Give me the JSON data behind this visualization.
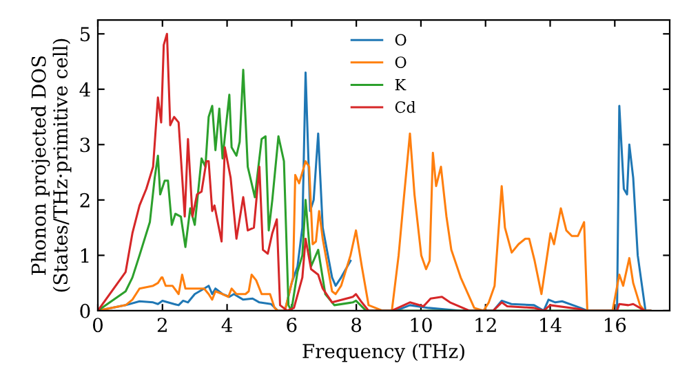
{
  "chart_data": {
    "type": "line",
    "xlabel": "Frequency (THz)",
    "ylabel": "Phonon projected DOS\n(States/THz·primitive cell)",
    "xlim": [
      0,
      17.7
    ],
    "ylim": [
      0,
      5.25
    ],
    "xticks": [
      0,
      2,
      4,
      6,
      8,
      10,
      12,
      14,
      16
    ],
    "yticks": [
      0,
      1,
      2,
      3,
      4,
      5
    ],
    "grid": false,
    "legend": "top",
    "line_style": "solid",
    "marker": "none",
    "series": [
      {
        "name": "O",
        "color": "#1f77b4",
        "x": [
          0,
          0.86,
          1.29,
          1.71,
          1.86,
          2.0,
          2.36,
          2.5,
          2.64,
          2.79,
          3.0,
          3.29,
          3.43,
          3.54,
          3.64,
          3.86,
          4.07,
          4.21,
          4.5,
          4.79,
          5.0,
          5.36,
          5.57,
          5.79,
          6.0,
          6.18,
          6.33,
          6.43,
          6.57,
          6.68,
          6.82,
          6.96,
          7.25,
          7.36,
          7.53,
          7.82,
          7.99,
          8.17,
          8.38,
          9.23,
          9.66,
          10.24,
          11.23,
          12.24,
          12.5,
          12.8,
          13.5,
          13.8,
          13.95,
          14.16,
          14.37,
          14.94,
          15.15,
          16.07,
          16.14,
          16.28,
          16.38,
          16.45,
          16.57,
          16.71,
          16.95,
          17.1
        ],
        "values": [
          0,
          0.1,
          0.17,
          0.15,
          0.12,
          0.18,
          0.12,
          0.1,
          0.18,
          0.15,
          0.3,
          0.4,
          0.45,
          0.3,
          0.4,
          0.3,
          0.25,
          0.3,
          0.2,
          0.22,
          0.15,
          0.12,
          0,
          0,
          0.5,
          0.8,
          1.5,
          4.3,
          1.8,
          2.0,
          3.2,
          1.5,
          0.6,
          0.45,
          0.6,
          0.9,
          null,
          null,
          0,
          0,
          0.1,
          0.05,
          0,
          0,
          0.18,
          0.12,
          0.1,
          0,
          0.2,
          0.15,
          0.17,
          0.05,
          0,
          0,
          3.7,
          2.2,
          2.1,
          3.0,
          2.4,
          1.0,
          0,
          0
        ]
      },
      {
        "name": "O",
        "color": "#ff7f0e",
        "x": [
          0,
          0.86,
          1.07,
          1.29,
          1.71,
          1.86,
          1.97,
          2.0,
          2.1,
          2.31,
          2.5,
          2.61,
          2.71,
          3.0,
          3.14,
          3.29,
          3.43,
          3.54,
          3.64,
          3.86,
          4.04,
          4.14,
          4.29,
          4.57,
          4.67,
          4.76,
          4.9,
          5.07,
          5.33,
          5.47,
          5.57,
          5.79,
          6.04,
          6.11,
          6.23,
          6.33,
          6.43,
          6.54,
          6.65,
          6.75,
          6.85,
          6.96,
          7.25,
          7.36,
          7.53,
          7.82,
          7.99,
          8.17,
          8.38,
          8.81,
          9.1,
          9.31,
          9.45,
          9.66,
          9.8,
          10.01,
          10.16,
          10.27,
          10.37,
          10.47,
          10.62,
          10.79,
          10.94,
          11.23,
          11.65,
          11.94,
          12.1,
          12.28,
          12.5,
          12.6,
          12.81,
          13.02,
          13.23,
          13.35,
          13.52,
          13.73,
          14.01,
          14.12,
          14.33,
          14.5,
          14.67,
          14.86,
          15.05,
          15.15,
          15.93,
          16.14,
          16.26,
          16.45,
          16.57,
          16.78,
          16.92,
          17.1
        ],
        "values": [
          0,
          0.1,
          0.2,
          0.4,
          0.45,
          0.5,
          0.6,
          0.6,
          0.45,
          0.45,
          0.3,
          0.65,
          0.4,
          0.4,
          0.4,
          0.4,
          0.3,
          0.2,
          0.35,
          0.3,
          0.25,
          0.4,
          0.3,
          0.3,
          0.35,
          0.65,
          0.55,
          0.3,
          0.3,
          0.05,
          0,
          0,
          0.6,
          2.45,
          2.3,
          2.5,
          2.7,
          2.6,
          1.2,
          1.25,
          1.8,
          1.3,
          0.35,
          0.3,
          0.45,
          1.0,
          1.45,
          0.8,
          0.1,
          0,
          0,
          1.0,
          1.9,
          3.2,
          2.1,
          1.0,
          0.75,
          0.9,
          2.85,
          2.25,
          2.6,
          1.7,
          1.1,
          0.6,
          0.05,
          0,
          0.15,
          0.45,
          2.25,
          1.5,
          1.05,
          1.2,
          1.3,
          1.3,
          0.9,
          0.3,
          1.4,
          1.2,
          1.85,
          1.45,
          1.35,
          1.35,
          1.6,
          0,
          0,
          0.65,
          0.45,
          0.95,
          0.5,
          0.1,
          0,
          0
        ]
      },
      {
        "name": "K",
        "color": "#2ca02c",
        "x": [
          0,
          0.86,
          1.07,
          1.29,
          1.61,
          1.76,
          1.86,
          1.93,
          2.07,
          2.17,
          2.29,
          2.4,
          2.57,
          2.71,
          2.86,
          3.0,
          3.21,
          3.33,
          3.43,
          3.54,
          3.64,
          3.76,
          3.86,
          3.96,
          4.07,
          4.14,
          4.29,
          4.39,
          4.5,
          4.64,
          4.86,
          5.07,
          5.19,
          5.29,
          5.4,
          5.59,
          5.76,
          5.9,
          5.99,
          6.18,
          6.33,
          6.43,
          6.6,
          6.82,
          7.04,
          7.32,
          7.89,
          7.99,
          8.3,
          17.1
        ],
        "values": [
          0,
          0.35,
          0.6,
          1.0,
          1.6,
          2.4,
          2.8,
          2.1,
          2.35,
          2.35,
          1.55,
          1.75,
          1.7,
          1.15,
          1.85,
          1.55,
          2.75,
          2.6,
          3.5,
          3.7,
          2.9,
          3.65,
          2.75,
          3.3,
          3.9,
          2.95,
          2.8,
          3.05,
          4.35,
          2.6,
          2.05,
          3.1,
          3.15,
          1.45,
          2.0,
          3.15,
          2.7,
          0.1,
          0,
          0.7,
          1.0,
          2.0,
          0.8,
          1.1,
          0.3,
          0.1,
          0.15,
          0.18,
          0,
          0
        ]
      },
      {
        "name": "Cd",
        "color": "#d62728",
        "x": [
          0,
          0.86,
          1.07,
          1.29,
          1.5,
          1.71,
          1.86,
          1.96,
          2.04,
          2.14,
          2.24,
          2.36,
          2.5,
          2.69,
          2.79,
          2.93,
          3.07,
          3.21,
          3.36,
          3.43,
          3.54,
          3.61,
          3.83,
          3.93,
          4.11,
          4.29,
          4.5,
          4.64,
          4.83,
          5.0,
          5.11,
          5.26,
          5.4,
          5.54,
          5.64,
          5.86,
          6.07,
          6.33,
          6.43,
          6.6,
          6.82,
          6.96,
          7.25,
          7.89,
          7.99,
          8.17,
          8.38,
          9.1,
          9.66,
          10.08,
          10.3,
          10.65,
          10.9,
          11.5,
          12.24,
          12.5,
          12.67,
          13.5,
          13.8,
          14.0,
          14.9,
          15.1,
          16.07,
          16.14,
          16.42,
          16.57,
          16.78,
          16.92,
          17.1
        ],
        "values": [
          0,
          0.7,
          1.4,
          1.9,
          2.2,
          2.6,
          3.85,
          3.4,
          4.8,
          5.0,
          3.35,
          3.5,
          3.4,
          1.7,
          3.1,
          1.7,
          2.1,
          2.15,
          2.7,
          2.7,
          1.8,
          1.9,
          1.25,
          2.95,
          2.4,
          1.3,
          2.05,
          1.45,
          1.5,
          2.6,
          1.1,
          1.03,
          1.4,
          1.65,
          0.1,
          0,
          0.05,
          0.6,
          1.3,
          0.75,
          0.65,
          0.4,
          0.15,
          0.25,
          0.3,
          0.15,
          0,
          0,
          0.15,
          0.08,
          0.22,
          0.25,
          0.15,
          0,
          0,
          0.15,
          0.08,
          0.05,
          0,
          0.1,
          0.03,
          0,
          0,
          0.12,
          0.1,
          0.12,
          0.05,
          0,
          0
        ]
      }
    ]
  }
}
